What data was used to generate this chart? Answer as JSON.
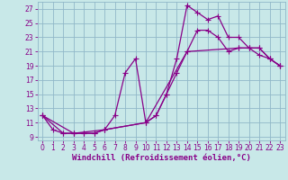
{
  "xlabel": "Windchill (Refroidissement éolien,°C)",
  "bg_color": "#c8e8e8",
  "line_color": "#880088",
  "grid_color": "#90b8c8",
  "xlim": [
    -0.5,
    23.5
  ],
  "ylim": [
    8.5,
    28
  ],
  "xticks": [
    0,
    1,
    2,
    3,
    4,
    5,
    6,
    7,
    8,
    9,
    10,
    11,
    12,
    13,
    14,
    15,
    16,
    17,
    18,
    19,
    20,
    21,
    22,
    23
  ],
  "yticks": [
    9,
    11,
    13,
    15,
    17,
    19,
    21,
    23,
    25,
    27
  ],
  "line1_x": [
    0,
    1,
    2,
    3,
    4,
    5,
    6,
    7,
    8,
    9,
    10,
    11,
    12,
    13,
    14,
    15,
    16,
    17,
    18,
    19,
    20,
    21,
    22,
    23
  ],
  "line1_y": [
    12,
    10,
    9.5,
    9.5,
    9.5,
    9.5,
    10,
    12,
    18,
    20,
    11,
    12,
    15,
    20,
    27.5,
    26.5,
    25.5,
    26,
    23,
    23,
    21.5,
    20.5,
    20,
    19
  ],
  "line2_x": [
    0,
    2,
    3,
    4,
    5,
    6,
    10,
    11,
    12,
    13,
    14,
    15,
    16,
    17,
    18,
    19,
    20,
    21,
    22,
    23
  ],
  "line2_y": [
    12,
    9.5,
    9.5,
    9.5,
    9.5,
    10,
    11,
    12,
    15,
    18,
    21,
    24,
    24,
    23,
    21,
    21.5,
    21.5,
    21.5,
    20,
    19
  ],
  "line3_x": [
    0,
    3,
    6,
    10,
    14,
    19,
    20,
    21,
    22,
    23
  ],
  "line3_y": [
    12,
    9.5,
    10,
    11,
    21,
    21.5,
    21.5,
    21.5,
    20,
    19
  ],
  "marker": "P",
  "markersize": 3,
  "linewidth": 0.9,
  "tick_fontsize": 5.5,
  "label_fontsize": 6.5
}
